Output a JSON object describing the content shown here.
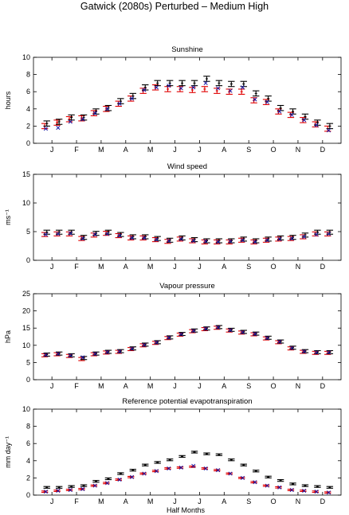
{
  "figure": {
    "title": "Gatwick (2080s) Perturbed – Medium High",
    "xlabel": "Half Months",
    "month_labels": [
      "J",
      "F",
      "M",
      "A",
      "M",
      "J",
      "J",
      "A",
      "S",
      "O",
      "N",
      "D"
    ]
  },
  "colors": {
    "observed": "#000000",
    "perturbed": "#e00000",
    "cross": "#1a1aa6"
  },
  "chart_data": [
    {
      "type": "errorbar",
      "title": "Sunshine",
      "ylabel": "hours",
      "ylim": [
        0,
        10
      ],
      "yticks": [
        0,
        2,
        4,
        6,
        8,
        10
      ],
      "x": [
        1,
        2,
        3,
        4,
        5,
        6,
        7,
        8,
        9,
        10,
        11,
        12,
        13,
        14,
        15,
        16,
        17,
        18,
        19,
        20,
        21,
        22,
        23,
        24
      ],
      "series": [
        {
          "values": [
            2.3,
            2.5,
            3.0,
            3.0,
            3.7,
            4.1,
            4.9,
            5.5,
            6.5,
            7.0,
            7.0,
            7.0,
            7.0,
            7.5,
            7.0,
            6.9,
            6.9,
            5.8,
            5.2,
            4.1,
            3.7,
            3.1,
            2.4,
            2.0
          ],
          "error": 0.3
        },
        {
          "values": [
            2.0,
            2.4,
            2.8,
            2.9,
            3.5,
            4.0,
            4.6,
            5.2,
            6.1,
            6.5,
            6.3,
            6.3,
            6.2,
            6.3,
            6.1,
            6.0,
            6.0,
            5.0,
            4.8,
            3.7,
            3.3,
            2.7,
            2.2,
            1.7
          ],
          "error": 0.3
        },
        {
          "values": [
            1.7,
            1.8,
            2.5,
            2.8,
            3.5,
            4.0,
            4.6,
            5.2,
            6.2,
            6.5,
            6.7,
            6.4,
            6.5,
            7.0,
            6.4,
            6.1,
            6.5,
            5.1,
            4.8,
            3.7,
            3.3,
            2.7,
            2.1,
            1.5
          ]
        }
      ]
    },
    {
      "type": "errorbar",
      "title": "Wind speed",
      "ylabel": "ms⁻¹",
      "ylim": [
        0,
        15
      ],
      "yticks": [
        0,
        5,
        10,
        15
      ],
      "x": [
        1,
        2,
        3,
        4,
        5,
        6,
        7,
        8,
        9,
        10,
        11,
        12,
        13,
        14,
        15,
        16,
        17,
        18,
        19,
        20,
        21,
        22,
        23,
        24
      ],
      "series": [
        {
          "values": [
            4.9,
            4.9,
            4.9,
            4.0,
            4.7,
            4.9,
            4.5,
            4.1,
            4.1,
            3.8,
            3.5,
            3.9,
            3.6,
            3.4,
            3.4,
            3.4,
            3.7,
            3.4,
            3.7,
            3.9,
            4.0,
            4.4,
            4.9,
            4.9
          ],
          "error": 0.35
        },
        {
          "values": [
            4.5,
            4.6,
            4.6,
            3.8,
            4.4,
            4.7,
            4.3,
            3.9,
            3.9,
            3.6,
            3.3,
            3.7,
            3.4,
            3.2,
            3.2,
            3.2,
            3.5,
            3.2,
            3.5,
            3.7,
            3.8,
            4.1,
            4.6,
            4.6
          ],
          "error": 0.35
        },
        {
          "values": [
            4.5,
            4.6,
            4.7,
            3.8,
            4.5,
            4.6,
            4.3,
            3.9,
            3.9,
            3.6,
            3.4,
            3.7,
            3.4,
            3.3,
            3.2,
            3.3,
            3.5,
            3.2,
            3.5,
            3.7,
            3.8,
            4.1,
            4.5,
            4.6
          ]
        }
      ]
    },
    {
      "type": "errorbar",
      "title": "Vapour pressure",
      "ylabel": "hPa",
      "ylim": [
        0,
        25
      ],
      "yticks": [
        0,
        5,
        10,
        15,
        20,
        25
      ],
      "x": [
        1,
        2,
        3,
        4,
        5,
        6,
        7,
        8,
        9,
        10,
        11,
        12,
        13,
        14,
        15,
        16,
        17,
        18,
        19,
        20,
        21,
        22,
        23,
        24
      ],
      "series": [
        {
          "values": [
            7.3,
            7.6,
            7.1,
            6.3,
            7.6,
            8.1,
            8.3,
            9.1,
            10.2,
            10.9,
            12.3,
            13.3,
            14.3,
            14.9,
            15.3,
            14.5,
            13.9,
            13.4,
            12.2,
            11.1,
            9.3,
            8.3,
            8.0,
            8.0
          ],
          "error": 0.45
        },
        {
          "values": [
            7.1,
            7.4,
            6.9,
            6.0,
            7.4,
            7.9,
            8.1,
            8.9,
            10.0,
            10.7,
            12.1,
            13.1,
            14.1,
            14.7,
            15.1,
            14.3,
            13.7,
            13.2,
            12.0,
            10.9,
            9.1,
            8.1,
            7.8,
            7.8
          ],
          "error": 0.45
        },
        {
          "values": [
            7.2,
            7.5,
            7.0,
            6.5,
            7.5,
            8.0,
            8.2,
            9.0,
            10.1,
            10.8,
            12.2,
            13.2,
            14.2,
            14.8,
            15.2,
            14.4,
            13.8,
            13.3,
            12.1,
            11.0,
            9.2,
            8.2,
            7.9,
            7.9
          ]
        }
      ]
    },
    {
      "type": "errorbar",
      "title": "Reference potential evapotranspiration",
      "ylabel": "mm day⁻¹",
      "ylim": [
        0,
        10
      ],
      "yticks": [
        0,
        2,
        4,
        6,
        8,
        10
      ],
      "x": [
        1,
        2,
        3,
        4,
        5,
        6,
        7,
        8,
        9,
        10,
        11,
        12,
        13,
        14,
        15,
        16,
        17,
        18,
        19,
        20,
        21,
        22,
        23,
        24
      ],
      "series": [
        {
          "values": [
            0.9,
            0.9,
            1.0,
            1.1,
            1.6,
            1.9,
            2.5,
            2.9,
            3.5,
            3.8,
            4.1,
            4.5,
            5.0,
            4.8,
            4.7,
            4.1,
            3.5,
            2.8,
            2.1,
            1.7,
            1.3,
            1.1,
            1.0,
            0.9
          ],
          "error": 0.1
        },
        {
          "values": [
            0.4,
            0.5,
            0.6,
            0.7,
            1.1,
            1.4,
            1.8,
            2.1,
            2.5,
            2.8,
            3.1,
            3.2,
            3.3,
            3.1,
            2.9,
            2.5,
            2.0,
            1.5,
            1.1,
            0.9,
            0.6,
            0.5,
            0.4,
            0.3
          ],
          "error": 0.08
        },
        {
          "values": [
            0.4,
            0.5,
            0.6,
            0.7,
            1.1,
            1.4,
            1.8,
            2.1,
            2.5,
            2.8,
            3.1,
            3.2,
            3.4,
            3.1,
            2.9,
            2.5,
            2.0,
            1.5,
            1.1,
            0.9,
            0.6,
            0.5,
            0.4,
            0.3
          ]
        }
      ]
    }
  ]
}
